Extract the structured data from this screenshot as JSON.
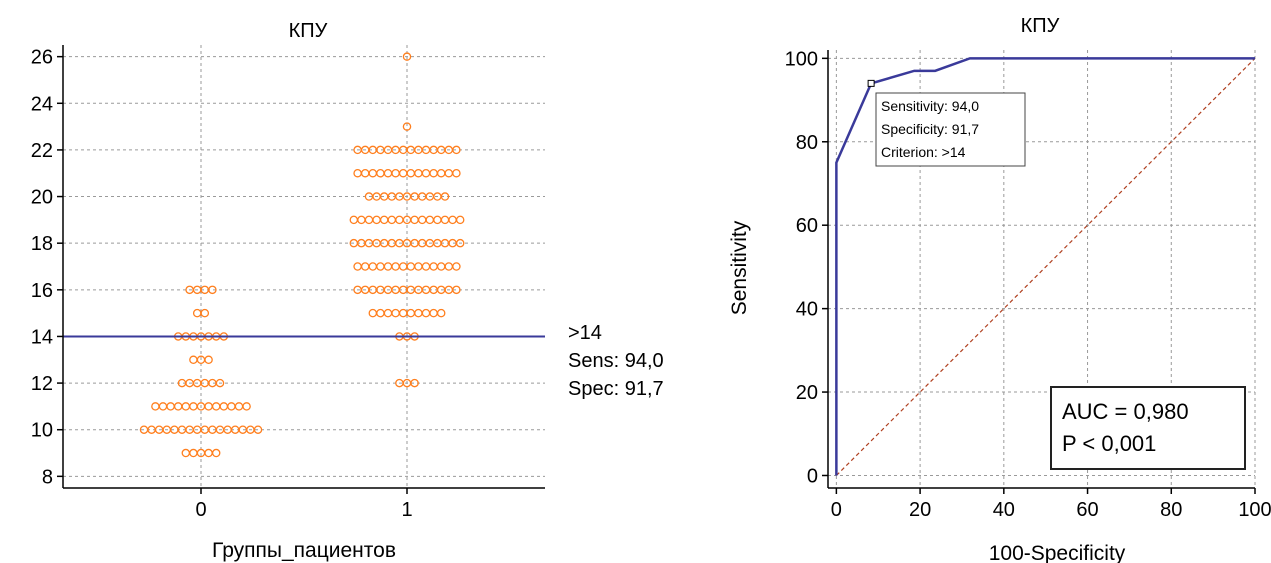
{
  "chart_data": [
    {
      "type": "scatter",
      "title": "КПУ",
      "xlabel": "Группы_пациентов",
      "ylabel": "",
      "ylim": [
        7.5,
        26.5
      ],
      "y_ticks": [
        8,
        10,
        12,
        14,
        16,
        18,
        20,
        22,
        24,
        26
      ],
      "x_ticks": [
        0,
        1
      ],
      "categories": [
        "0",
        "1"
      ],
      "grid": true,
      "marker_color": "#ff7f1e",
      "cutoff": {
        "value": 14,
        "color": "#3a3a9a"
      },
      "cutoff_labels": [
        ">14",
        "Sens: 94,0",
        "Spec: 91,7"
      ],
      "groups": [
        {
          "category": "0",
          "points": [
            {
              "y": 9,
              "n": 5
            },
            {
              "y": 10,
              "n": 16
            },
            {
              "y": 11,
              "n": 13
            },
            {
              "y": 12,
              "n": 6
            },
            {
              "y": 13,
              "n": 3
            },
            {
              "y": 14,
              "n": 7
            },
            {
              "y": 15,
              "n": 2
            },
            {
              "y": 16,
              "n": 4
            }
          ]
        },
        {
          "category": "1",
          "points": [
            {
              "y": 12,
              "n": 3
            },
            {
              "y": 14,
              "n": 3
            },
            {
              "y": 15,
              "n": 10
            },
            {
              "y": 16,
              "n": 14
            },
            {
              "y": 17,
              "n": 14
            },
            {
              "y": 18,
              "n": 15
            },
            {
              "y": 19,
              "n": 15
            },
            {
              "y": 20,
              "n": 11
            },
            {
              "y": 21,
              "n": 14
            },
            {
              "y": 22,
              "n": 14
            },
            {
              "y": 23,
              "n": 1
            },
            {
              "y": 26,
              "n": 1
            }
          ]
        }
      ]
    },
    {
      "type": "line",
      "title": "КПУ",
      "xlabel": "100-Specificity",
      "ylabel": "Sensitivity",
      "xlim": [
        -2,
        100
      ],
      "ylim": [
        -3,
        102
      ],
      "x_ticks": [
        0,
        20,
        40,
        60,
        80,
        100
      ],
      "y_ticks": [
        0,
        20,
        40,
        60,
        80,
        100
      ],
      "grid": true,
      "series": [
        {
          "color": "#3a3a9a",
          "x": [
            0,
            0,
            8.3,
            18.6,
            23.6,
            31.9,
            100
          ],
          "y": [
            0,
            75,
            94,
            97,
            97,
            100,
            100
          ]
        },
        {
          "color": "#b04020",
          "dashed": true,
          "x": [
            0,
            100
          ],
          "y": [
            0,
            100
          ]
        }
      ],
      "marker_point": {
        "x": 8.3,
        "y": 94
      },
      "annotation_box": [
        "Sensitivity: 94,0",
        "Specificity: 91,7",
        "Criterion: >14"
      ],
      "stats_box": [
        "AUC = 0,980",
        "P < 0,001"
      ]
    }
  ]
}
